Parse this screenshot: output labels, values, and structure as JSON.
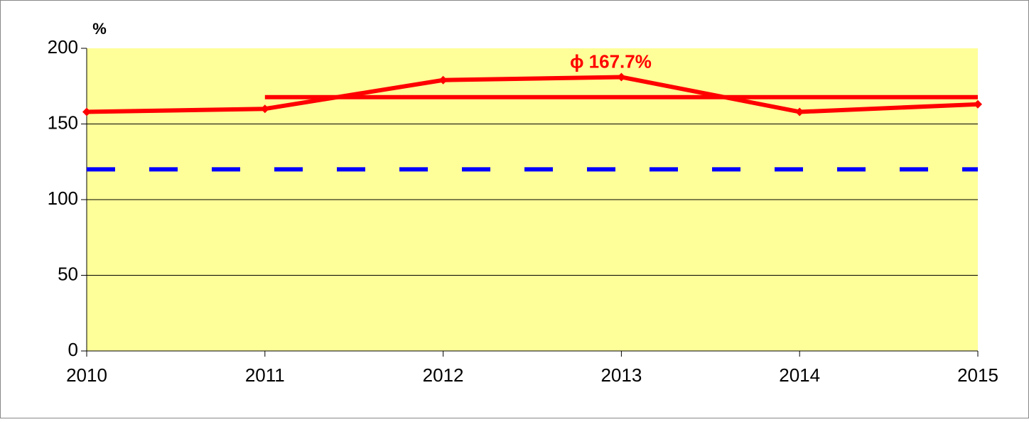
{
  "chart_data": {
    "type": "line",
    "y_unit": "%",
    "x": [
      2010,
      2011,
      2012,
      2013,
      2014,
      2015
    ],
    "series": [
      {
        "color": "#ff0000",
        "values": [
          158,
          160,
          179,
          181,
          158,
          163
        ]
      }
    ],
    "reference_lines": [
      {
        "value": 167.7,
        "x": [
          2011,
          2015
        ],
        "color": "#ff0000",
        "dashed": false,
        "label": "ϕ 167.7%"
      },
      {
        "value": 120,
        "x": [
          2010,
          2015
        ],
        "color": "#0000ff",
        "dashed": true
      }
    ],
    "xlim": [
      2010,
      2015
    ],
    "xticks": [
      2010,
      2011,
      2012,
      2013,
      2014,
      2015
    ],
    "ylim": [
      0,
      200
    ],
    "yticks": [
      0,
      50,
      100,
      150,
      200
    ],
    "grid": true,
    "plot_background": "#ffff99"
  }
}
